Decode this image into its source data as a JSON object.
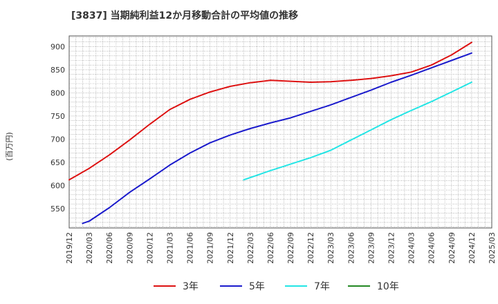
{
  "chart_data": {
    "type": "line",
    "title": "[3837]  当期純利益12か月移動合計の平均値の推移",
    "ylabel": "(百万円)",
    "xlabel": "",
    "ylim": [
      508,
      923
    ],
    "yticks": [
      550,
      600,
      650,
      700,
      750,
      800,
      850,
      900
    ],
    "x_ticks": [
      "2019/12",
      "2020/03",
      "2020/06",
      "2020/09",
      "2020/12",
      "2021/03",
      "2021/06",
      "2021/09",
      "2021/12",
      "2022/03",
      "2022/06",
      "2022/09",
      "2022/12",
      "2023/03",
      "2023/06",
      "2023/09",
      "2023/12",
      "2024/03",
      "2024/06",
      "2024/09",
      "2024/12",
      "2025/03"
    ],
    "grid": true,
    "legend_position": "bottom",
    "series": [
      {
        "name": "3年",
        "color": "#dd1111",
        "points": [
          [
            "2019/12",
            612
          ],
          [
            "2020/03",
            637
          ],
          [
            "2020/06",
            666
          ],
          [
            "2020/09",
            698
          ],
          [
            "2020/12",
            732
          ],
          [
            "2021/03",
            764
          ],
          [
            "2021/06",
            786
          ],
          [
            "2021/09",
            802
          ],
          [
            "2021/12",
            814
          ],
          [
            "2022/03",
            822
          ],
          [
            "2022/06",
            827
          ],
          [
            "2022/09",
            825
          ],
          [
            "2022/12",
            823
          ],
          [
            "2023/03",
            824
          ],
          [
            "2023/06",
            827
          ],
          [
            "2023/09",
            831
          ],
          [
            "2023/12",
            837
          ],
          [
            "2024/03",
            845
          ],
          [
            "2024/06",
            860
          ],
          [
            "2024/09",
            882
          ],
          [
            "2024/12",
            909
          ]
        ]
      },
      {
        "name": "5年",
        "color": "#1a1acc",
        "points": [
          [
            "2020/02",
            518
          ],
          [
            "2020/03",
            523
          ],
          [
            "2020/06",
            552
          ],
          [
            "2020/09",
            585
          ],
          [
            "2020/12",
            614
          ],
          [
            "2021/03",
            644
          ],
          [
            "2021/06",
            670
          ],
          [
            "2021/09",
            692
          ],
          [
            "2021/12",
            709
          ],
          [
            "2022/03",
            723
          ],
          [
            "2022/06",
            735
          ],
          [
            "2022/09",
            746
          ],
          [
            "2022/12",
            760
          ],
          [
            "2023/03",
            774
          ],
          [
            "2023/06",
            790
          ],
          [
            "2023/09",
            806
          ],
          [
            "2023/12",
            823
          ],
          [
            "2024/03",
            838
          ],
          [
            "2024/06",
            854
          ],
          [
            "2024/09",
            870
          ],
          [
            "2024/12",
            886
          ]
        ]
      },
      {
        "name": "7年",
        "color": "#22e5e5",
        "points": [
          [
            "2022/02",
            612
          ],
          [
            "2022/03",
            617
          ],
          [
            "2022/06",
            632
          ],
          [
            "2022/09",
            646
          ],
          [
            "2022/12",
            660
          ],
          [
            "2023/03",
            676
          ],
          [
            "2023/06",
            698
          ],
          [
            "2023/09",
            720
          ],
          [
            "2023/12",
            742
          ],
          [
            "2024/03",
            762
          ],
          [
            "2024/06",
            781
          ],
          [
            "2024/09",
            802
          ],
          [
            "2024/12",
            823
          ]
        ]
      },
      {
        "name": "10年",
        "color": "#228822",
        "points": []
      }
    ]
  }
}
